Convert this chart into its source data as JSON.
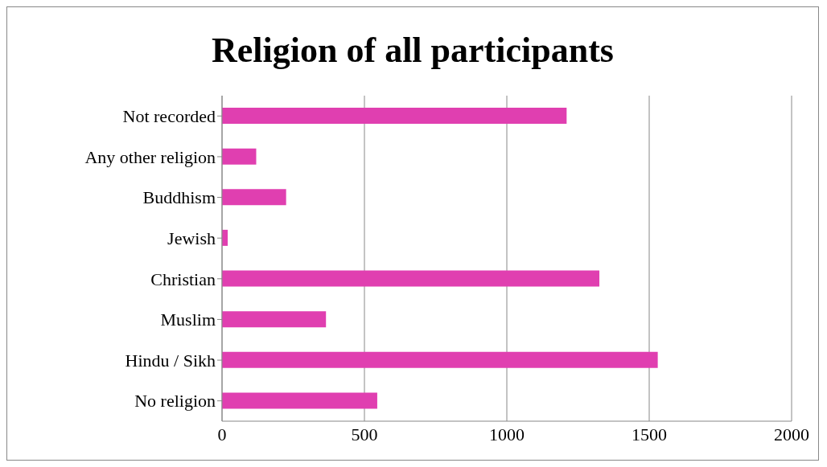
{
  "chart_data": {
    "type": "bar",
    "orientation": "horizontal",
    "title": "Religion of all participants",
    "categories": [
      "Not recorded",
      "Any other religion",
      "Buddhism",
      "Jewish",
      "Christian",
      "Muslim",
      "Hindu / Sikh",
      "No religion"
    ],
    "values": [
      1210,
      120,
      225,
      20,
      1325,
      365,
      1530,
      545
    ],
    "color": "#e03fb0",
    "xlim": [
      0,
      2000
    ],
    "xticks": [
      0,
      500,
      1000,
      1500,
      2000
    ],
    "grid": "x"
  }
}
